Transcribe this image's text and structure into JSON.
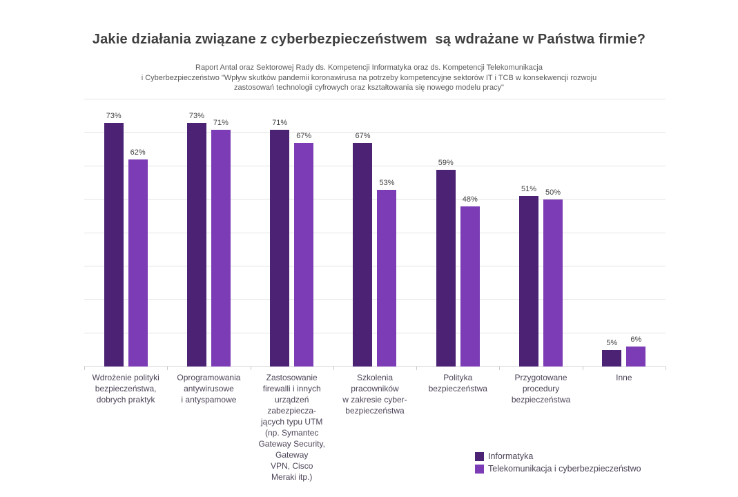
{
  "title": "Jakie działania związane z cyberbezpieczeństwem  są wdrażane w Państwa firmie?",
  "subtitle": {
    "lines": [
      "Raport Antal oraz Sektorowej Rady ds. Kompetencji Informatyka oraz ds. Kompetencji Telekomunikacja",
      "i Cyberbezpieczeństwo \"Wpływ skutków pandemii koronawirusa na potrzeby kompetencyjne sektorów IT i TCB w konsekwencji rozwoju",
      "zastosowań technologii cyfrowych oraz kształtowania się nowego modelu pracy\""
    ]
  },
  "colors": {
    "informatyka": "#4b2274",
    "telekomunikacja": "#7b3cb5",
    "gridline": "#e3e3e3",
    "axis_line": "#d6d6d6",
    "title_text": "#3f3f3f",
    "subtitle_text": "#5a5a5a",
    "value_label_text": "#404040",
    "category_label_text": "#4c4356"
  },
  "chart_data": {
    "type": "bar",
    "title": "Jakie działania związane z cyberbezpieczeństwem  są wdrażane w Państwa firmie?",
    "xlabel": "",
    "ylabel": "",
    "ylim": [
      0,
      80
    ],
    "grid_step": 10,
    "grid": true,
    "y_axis_labels_visible": false,
    "value_label_suffix": "%",
    "legend_position": "bottom-right",
    "categories": [
      [
        "Wdrożenie polityki",
        "bezpieczeństwa,",
        "dobrych praktyk"
      ],
      [
        "Oprogramowania",
        "antywirusowe",
        "i antyspamowe"
      ],
      [
        "Zastosowanie",
        "firewalli i innych",
        "urządzeń",
        "zabezpiecza-",
        "jących typu UTM",
        "(np. Symantec",
        "Gateway Security,",
        "Gateway",
        "VPN, Cisco",
        "Meraki itp.)"
      ],
      [
        "Szkolenia",
        "pracowników",
        "w zakresie cyber-",
        "bezpieczeństwa"
      ],
      [
        "Polityka",
        "bezpieczeństwa"
      ],
      [
        "Przygotowane",
        "procedury",
        "bezpieczeństwa"
      ],
      [
        "Inne"
      ]
    ],
    "series": [
      {
        "name": "Informatyka",
        "color": "#4b2274",
        "values": [
          73,
          73,
          71,
          67,
          59,
          51,
          5
        ],
        "value_labels": [
          "73%",
          "73%",
          "71%",
          "67%",
          "59%",
          "51%",
          "5%"
        ]
      },
      {
        "name": "Telekomunikacja i cyberbezpieczeństwo",
        "color": "#7b3cb5",
        "values": [
          62,
          71,
          67,
          53,
          48,
          50,
          6
        ],
        "value_labels": [
          "62%",
          "71%",
          "67%",
          "53%",
          "48%",
          "50%",
          "6%"
        ]
      }
    ]
  }
}
